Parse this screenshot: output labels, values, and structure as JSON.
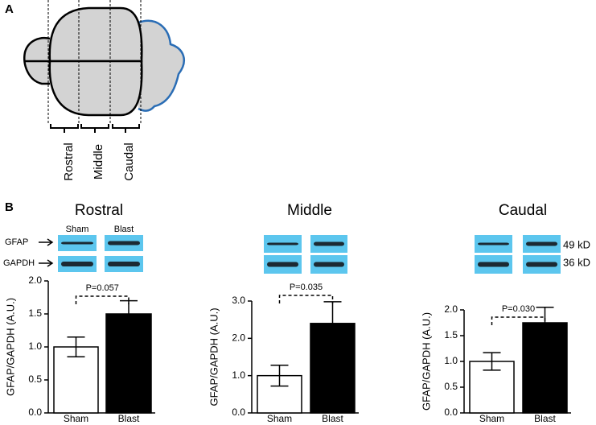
{
  "panel_labels": [
    "A",
    "B"
  ],
  "diagram": {
    "regions": [
      "Rostral",
      "Middle",
      "Caudal"
    ]
  },
  "blots": {
    "lanes": [
      "Sham",
      "Blast"
    ],
    "bands": [
      "GFAP",
      "GAPDH"
    ],
    "sizes": [
      "49 kD",
      "36 kD"
    ]
  },
  "chart_data": [
    {
      "type": "bar",
      "title": "Rostral",
      "ylabel": "GFAP/GAPDH (A.U.)",
      "categories": [
        "Sham",
        "Blast"
      ],
      "values": [
        1.0,
        1.5
      ],
      "errors": [
        0.15,
        0.2
      ],
      "colors": [
        "#ffffff",
        "#000000"
      ],
      "ylim": [
        0,
        2.0
      ],
      "yticks": [
        {
          "value": 0,
          "label": "0.0"
        },
        0.5,
        {
          "value": 1,
          "label": "1.0"
        },
        1.5,
        {
          "value": 2,
          "label": "2.0"
        }
      ],
      "annotation": "P=0.057"
    },
    {
      "type": "bar",
      "title": "Middle",
      "ylabel": "GFAP/GAPDH (A.U.)",
      "categories": [
        "Sham",
        "Blast"
      ],
      "values": [
        1.0,
        2.4
      ],
      "errors": [
        0.28,
        0.58
      ],
      "colors": [
        "#ffffff",
        "#000000"
      ],
      "ylim": [
        0,
        3.0
      ],
      "yticks": [
        {
          "value": 0,
          "label": "0.0"
        },
        {
          "value": 1,
          "label": "1.0"
        },
        {
          "value": 2,
          "label": "2.0"
        },
        {
          "value": 3,
          "label": "3.0"
        }
      ],
      "annotation": "P=0.035"
    },
    {
      "type": "bar",
      "title": "Caudal",
      "ylabel": "GFAP/GAPDH (A.U.)",
      "categories": [
        "Sham",
        "Blast"
      ],
      "values": [
        1.0,
        1.75
      ],
      "errors": [
        0.17,
        0.3
      ],
      "colors": [
        "#ffffff",
        "#000000"
      ],
      "ylim": [
        0,
        2.0
      ],
      "yticks": [
        {
          "value": 0,
          "label": "0.0"
        },
        0.5,
        {
          "value": 1,
          "label": "1.0"
        },
        1.5,
        {
          "value": 2,
          "label": "2.0"
        }
      ],
      "annotation": "P=0.030"
    }
  ]
}
